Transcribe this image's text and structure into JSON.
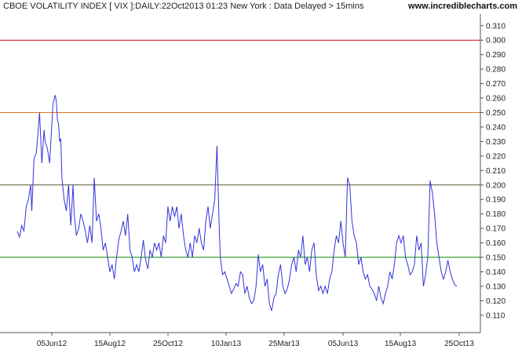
{
  "header": {
    "title": "CBOE VOLATILITY INDEX [ VIX ]:DAILY:22Oct2013 01:23 New York : Data Delayed > 15mins",
    "site": "www.incrediblecharts.com"
  },
  "chart_data": {
    "type": "line",
    "title": "CBOE VOLATILITY INDEX [ VIX ]:DAILY:22Oct2013 01:23 New York : Data Delayed > 15mins",
    "xlabel": "",
    "ylabel": "",
    "ylim": [
      0.098,
      0.318
    ],
    "grid": false,
    "x_tick_labels": [
      "05Jun12",
      "15Aug12",
      "25Oct12",
      "10Jan13",
      "25Mar13",
      "05Jun13",
      "15Aug13",
      "25Oct13"
    ],
    "y_tick_labels": [
      "0.110",
      "0.120",
      "0.130",
      "0.140",
      "0.150",
      "0.160",
      "0.170",
      "0.180",
      "0.190",
      "0.200",
      "0.210",
      "0.220",
      "0.230",
      "0.240",
      "0.250",
      "0.260",
      "0.270",
      "0.280",
      "0.290",
      "0.300",
      "0.310"
    ],
    "reference_lines": [
      {
        "value": 0.3,
        "color": "#cc0000"
      },
      {
        "value": 0.25,
        "color": "#e07820"
      },
      {
        "value": 0.2,
        "color": "#555533"
      },
      {
        "value": 0.15,
        "color": "#008800"
      }
    ],
    "series": [
      {
        "color": "#3333dd",
        "points": [
          [
            0,
            0.168
          ],
          [
            2,
            0.164
          ],
          [
            4,
            0.172
          ],
          [
            6,
            0.168
          ],
          [
            8,
            0.185
          ],
          [
            10,
            0.19
          ],
          [
            12,
            0.2
          ],
          [
            13,
            0.182
          ],
          [
            15,
            0.218
          ],
          [
            17,
            0.222
          ],
          [
            19,
            0.24
          ],
          [
            20,
            0.25
          ],
          [
            22,
            0.215
          ],
          [
            24,
            0.238
          ],
          [
            25,
            0.23
          ],
          [
            27,
            0.225
          ],
          [
            29,
            0.215
          ],
          [
            30,
            0.228
          ],
          [
            32,
            0.256
          ],
          [
            34,
            0.262
          ],
          [
            35,
            0.258
          ],
          [
            36,
            0.245
          ],
          [
            37,
            0.242
          ],
          [
            38,
            0.23
          ],
          [
            39,
            0.232
          ],
          [
            40,
            0.205
          ],
          [
            42,
            0.19
          ],
          [
            44,
            0.182
          ],
          [
            46,
            0.2
          ],
          [
            47,
            0.185
          ],
          [
            48,
            0.172
          ],
          [
            50,
            0.2
          ],
          [
            51,
            0.18
          ],
          [
            53,
            0.165
          ],
          [
            55,
            0.17
          ],
          [
            57,
            0.18
          ],
          [
            59,
            0.175
          ],
          [
            61,
            0.168
          ],
          [
            63,
            0.16
          ],
          [
            65,
            0.172
          ],
          [
            67,
            0.16
          ],
          [
            69,
            0.205
          ],
          [
            71,
            0.175
          ],
          [
            73,
            0.18
          ],
          [
            75,
            0.17
          ],
          [
            77,
            0.155
          ],
          [
            79,
            0.16
          ],
          [
            81,
            0.15
          ],
          [
            83,
            0.14
          ],
          [
            85,
            0.145
          ],
          [
            87,
            0.135
          ],
          [
            89,
            0.15
          ],
          [
            91,
            0.162
          ],
          [
            93,
            0.168
          ],
          [
            95,
            0.175
          ],
          [
            97,
            0.165
          ],
          [
            99,
            0.18
          ],
          [
            101,
            0.155
          ],
          [
            103,
            0.15
          ],
          [
            105,
            0.14
          ],
          [
            107,
            0.145
          ],
          [
            109,
            0.14
          ],
          [
            111,
            0.15
          ],
          [
            113,
            0.162
          ],
          [
            115,
            0.148
          ],
          [
            117,
            0.142
          ],
          [
            119,
            0.155
          ],
          [
            121,
            0.15
          ],
          [
            123,
            0.16
          ],
          [
            125,
            0.155
          ],
          [
            127,
            0.16
          ],
          [
            129,
            0.15
          ],
          [
            131,
            0.165
          ],
          [
            133,
            0.16
          ],
          [
            135,
            0.185
          ],
          [
            137,
            0.175
          ],
          [
            139,
            0.185
          ],
          [
            141,
            0.178
          ],
          [
            143,
            0.185
          ],
          [
            145,
            0.17
          ],
          [
            147,
            0.18
          ],
          [
            149,
            0.165
          ],
          [
            151,
            0.155
          ],
          [
            153,
            0.15
          ],
          [
            155,
            0.16
          ],
          [
            157,
            0.15
          ],
          [
            159,
            0.165
          ],
          [
            161,
            0.16
          ],
          [
            163,
            0.17
          ],
          [
            165,
            0.16
          ],
          [
            167,
            0.155
          ],
          [
            169,
            0.175
          ],
          [
            171,
            0.185
          ],
          [
            173,
            0.17
          ],
          [
            175,
            0.18
          ],
          [
            177,
            0.19
          ],
          [
            179,
            0.227
          ],
          [
            180,
            0.2
          ],
          [
            181,
            0.17
          ],
          [
            182,
            0.15
          ],
          [
            184,
            0.138
          ],
          [
            186,
            0.14
          ],
          [
            188,
            0.135
          ],
          [
            190,
            0.13
          ],
          [
            192,
            0.125
          ],
          [
            194,
            0.128
          ],
          [
            196,
            0.132
          ],
          [
            198,
            0.13
          ],
          [
            200,
            0.14
          ],
          [
            202,
            0.138
          ],
          [
            204,
            0.125
          ],
          [
            206,
            0.13
          ],
          [
            208,
            0.122
          ],
          [
            210,
            0.118
          ],
          [
            212,
            0.12
          ],
          [
            214,
            0.13
          ],
          [
            216,
            0.152
          ],
          [
            218,
            0.14
          ],
          [
            220,
            0.145
          ],
          [
            222,
            0.13
          ],
          [
            224,
            0.135
          ],
          [
            226,
            0.118
          ],
          [
            228,
            0.113
          ],
          [
            230,
            0.122
          ],
          [
            232,
            0.125
          ],
          [
            234,
            0.138
          ],
          [
            236,
            0.145
          ],
          [
            238,
            0.13
          ],
          [
            240,
            0.125
          ],
          [
            242,
            0.128
          ],
          [
            244,
            0.135
          ],
          [
            246,
            0.145
          ],
          [
            248,
            0.15
          ],
          [
            250,
            0.14
          ],
          [
            252,
            0.155
          ],
          [
            254,
            0.15
          ],
          [
            256,
            0.165
          ],
          [
            258,
            0.145
          ],
          [
            260,
            0.15
          ],
          [
            262,
            0.14
          ],
          [
            264,
            0.155
          ],
          [
            266,
            0.16
          ],
          [
            268,
            0.138
          ],
          [
            270,
            0.127
          ],
          [
            272,
            0.13
          ],
          [
            274,
            0.125
          ],
          [
            276,
            0.13
          ],
          [
            278,
            0.125
          ],
          [
            280,
            0.135
          ],
          [
            282,
            0.14
          ],
          [
            284,
            0.155
          ],
          [
            286,
            0.165
          ],
          [
            288,
            0.16
          ],
          [
            290,
            0.175
          ],
          [
            292,
            0.16
          ],
          [
            294,
            0.15
          ],
          [
            296,
            0.205
          ],
          [
            298,
            0.2
          ],
          [
            300,
            0.175
          ],
          [
            302,
            0.165
          ],
          [
            304,
            0.16
          ],
          [
            306,
            0.145
          ],
          [
            308,
            0.15
          ],
          [
            310,
            0.14
          ],
          [
            312,
            0.135
          ],
          [
            314,
            0.138
          ],
          [
            316,
            0.13
          ],
          [
            318,
            0.128
          ],
          [
            320,
            0.125
          ],
          [
            322,
            0.12
          ],
          [
            324,
            0.13
          ],
          [
            326,
            0.122
          ],
          [
            328,
            0.118
          ],
          [
            330,
            0.125
          ],
          [
            332,
            0.13
          ],
          [
            334,
            0.14
          ],
          [
            336,
            0.135
          ],
          [
            338,
            0.145
          ],
          [
            340,
            0.16
          ],
          [
            342,
            0.165
          ],
          [
            344,
            0.16
          ],
          [
            346,
            0.165
          ],
          [
            348,
            0.15
          ],
          [
            350,
            0.145
          ],
          [
            352,
            0.138
          ],
          [
            354,
            0.14
          ],
          [
            356,
            0.145
          ],
          [
            358,
            0.165
          ],
          [
            360,
            0.155
          ],
          [
            362,
            0.16
          ],
          [
            364,
            0.13
          ],
          [
            366,
            0.138
          ],
          [
            368,
            0.15
          ],
          [
            370,
            0.203
          ],
          [
            372,
            0.195
          ],
          [
            374,
            0.18
          ],
          [
            376,
            0.16
          ],
          [
            378,
            0.15
          ],
          [
            380,
            0.14
          ],
          [
            382,
            0.135
          ],
          [
            384,
            0.14
          ],
          [
            386,
            0.148
          ],
          [
            388,
            0.14
          ],
          [
            390,
            0.135
          ],
          [
            392,
            0.131
          ],
          [
            394,
            0.13
          ]
        ]
      }
    ]
  }
}
